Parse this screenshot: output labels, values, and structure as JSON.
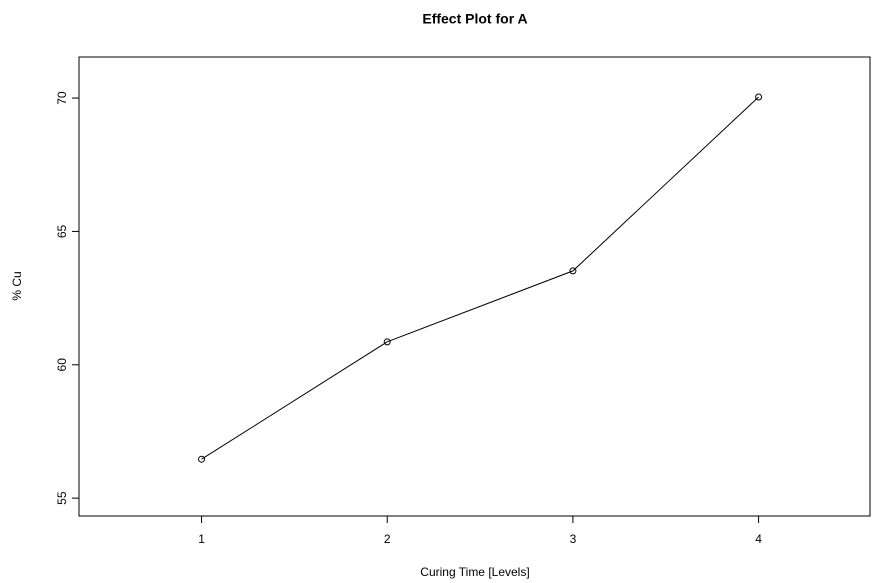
{
  "chart_data": {
    "type": "line",
    "title": "Effect Plot for A",
    "x_label": "Curing Time [Levels]",
    "y_label": "% Cu",
    "x": [
      1,
      2,
      3,
      4
    ],
    "series": [
      {
        "name": "A",
        "color": "#000000",
        "values": [
          56.46,
          60.86,
          63.52,
          70.04
        ]
      }
    ],
    "xlim": [
      0.34,
      4.6
    ],
    "xticks": [
      1,
      2,
      3,
      4
    ],
    "ylim": [
      54.33,
      71.54
    ],
    "yticks": [
      55,
      60,
      65,
      70
    ],
    "markers": "open-circle",
    "grid": false
  }
}
